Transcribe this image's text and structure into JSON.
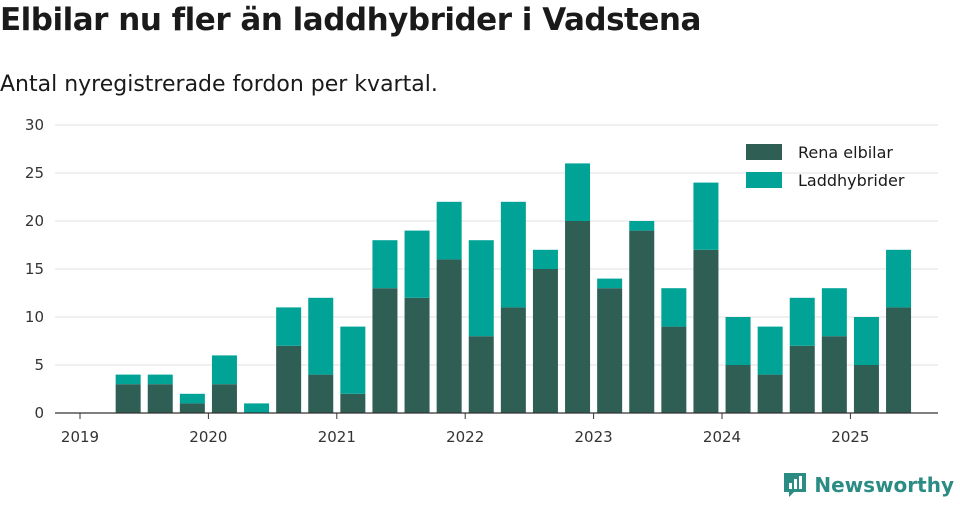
{
  "title": "Elbilar nu fler än laddhybrider i Vadstena",
  "subtitle": "Antal nyregistrerade fordon per kvartal.",
  "brand": {
    "name": "Newsworthy",
    "icon": "newsworthy-logo-icon",
    "color": "#2a8c83"
  },
  "chart_data": {
    "type": "bar",
    "stacked": true,
    "x_axis": {
      "type": "date",
      "tick_labels": [
        "2019",
        "2020",
        "2021",
        "2022",
        "2023",
        "2024",
        "2025"
      ],
      "range": [
        "2019-01-01",
        "2025-12-31"
      ]
    },
    "y_axis": {
      "ylim": [
        0,
        30
      ],
      "ticks": [
        0,
        5,
        10,
        15,
        20,
        25,
        30
      ]
    },
    "grid": true,
    "legend_placement": "top-right",
    "categories": [
      "2019-Q2",
      "2019-Q3",
      "2019-Q4",
      "2020-Q1",
      "2020-Q2",
      "2020-Q3",
      "2020-Q4",
      "2021-Q1",
      "2021-Q2",
      "2021-Q3",
      "2021-Q4",
      "2022-Q1",
      "2022-Q2",
      "2022-Q3",
      "2022-Q4",
      "2023-Q1",
      "2023-Q2",
      "2023-Q3",
      "2023-Q4",
      "2024-Q1",
      "2024-Q2",
      "2024-Q3",
      "2024-Q4",
      "2025-Q1",
      "2025-Q2"
    ],
    "series": [
      {
        "name": "Rena elbilar",
        "color": "#2f5e55",
        "values": [
          3,
          3,
          1,
          3,
          0,
          7,
          4,
          2,
          13,
          12,
          16,
          8,
          11,
          15,
          20,
          13,
          19,
          9,
          17,
          5,
          4,
          7,
          8,
          5,
          11
        ]
      },
      {
        "name": "Laddhybrider",
        "color": "#00a396",
        "values": [
          1,
          1,
          1,
          3,
          1,
          4,
          8,
          7,
          5,
          7,
          6,
          10,
          11,
          2,
          6,
          1,
          1,
          4,
          7,
          5,
          5,
          5,
          5,
          5,
          6
        ]
      }
    ]
  }
}
